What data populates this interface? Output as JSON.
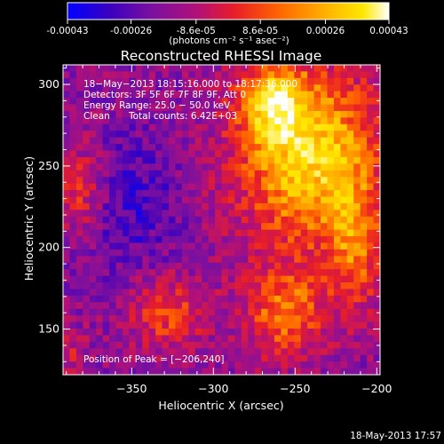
{
  "colors": {
    "background": "#000000",
    "foreground": "#ffffff",
    "colormap": [
      "#0000ff",
      "#3a00c0",
      "#7a10a0",
      "#b0107a",
      "#e81e28",
      "#ff6600",
      "#ffb000",
      "#ffe800",
      "#ffffff"
    ]
  },
  "colorbar": {
    "tick_labels": [
      "-0.00043",
      "-0.00026",
      "-8.6e-05",
      "8.6e-05",
      "0.00026",
      "0.00043"
    ],
    "tick_values": [
      -0.00043,
      -0.00026,
      -8.6e-05,
      8.6e-05,
      0.00026,
      0.00043
    ],
    "range": [
      -0.00043,
      0.00043
    ],
    "unit_label": "(photons cm⁻² s⁻¹ asec⁻²)"
  },
  "chart_data": {
    "type": "heatmap",
    "title": "Reconstructed RHESSI Image",
    "xlabel": "Heliocentric X (arcsec)",
    "ylabel": "Heliocentric Y (arcsec)",
    "xlim": [
      -392,
      -198
    ],
    "ylim": [
      122,
      312
    ],
    "xticks": [
      -350,
      -300,
      -250,
      -200
    ],
    "xtick_labels": [
      "−350",
      "−300",
      "−250",
      "−200"
    ],
    "yticks": [
      150,
      200,
      250,
      300
    ],
    "ytick_labels": [
      "150",
      "200",
      "250",
      "300"
    ],
    "annotations": {
      "time": "18−May−2013 18:15:16.000 to 18:17:36.000",
      "detectors": "Detectors: 3F 5F 6F 7F 8F 9F, Att 0",
      "energy": "Energy Range: 25.0 − 50.0 keV",
      "method": "Clean",
      "counts": "Total counts: 6.42E+03",
      "peak": "Position of Peak = [−206,240]"
    },
    "grid": false
  },
  "footer": {
    "timestamp": "18-May-2013 17:57"
  }
}
